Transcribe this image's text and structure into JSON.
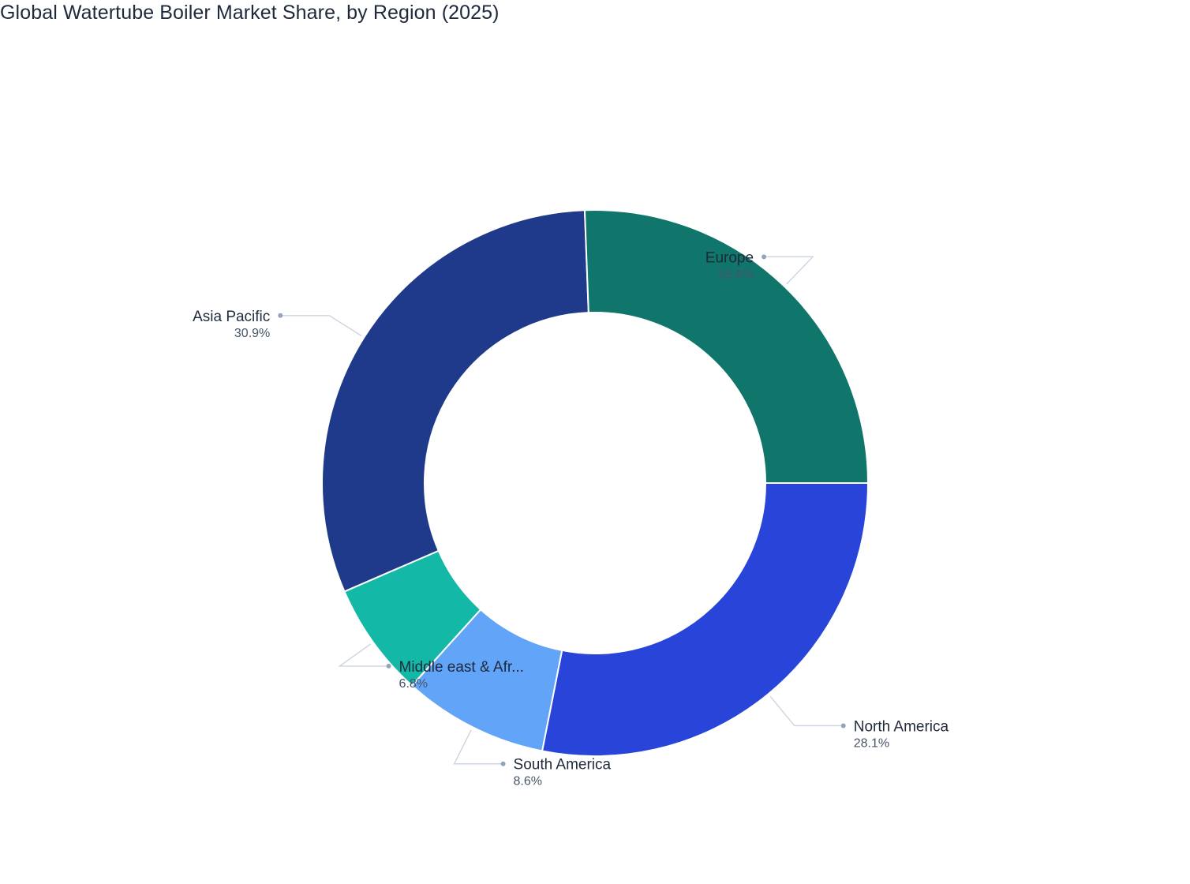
{
  "chart_data": {
    "type": "pie",
    "variant": "donut",
    "title": "Global Watertube Boiler Market Share, by Region (2025)",
    "unit": "%",
    "slices": [
      {
        "label": "North America",
        "display_label": "North America",
        "value": 28.1,
        "value_label": "28.1%",
        "color": "#2844d9",
        "label_side": "right"
      },
      {
        "label": "South America",
        "display_label": "South America",
        "value": 8.6,
        "value_label": "8.6%",
        "color": "#62a4f7",
        "label_side": "right"
      },
      {
        "label": "Middle east & Africa",
        "display_label": "Middle east & Afr...",
        "value": 6.8,
        "value_label": "6.8%",
        "color": "#14b8a6",
        "label_side": "right"
      },
      {
        "label": "Asia Pacific",
        "display_label": "Asia Pacific",
        "value": 30.9,
        "value_label": "30.9%",
        "color": "#1f3a8a",
        "label_side": "left"
      },
      {
        "label": "Europe",
        "display_label": "Europe",
        "value": 25.6,
        "value_label": "25.6%",
        "color": "#10766c",
        "label_side": "left"
      }
    ],
    "legend": "none",
    "start_position": "3 o'clock",
    "direction": "clockwise"
  },
  "colors": {
    "title": "#1e293b",
    "label": "#1e293b",
    "value_label": "#475569",
    "leader_line": "#cbd5e1",
    "leader_dot": "#94a3b8",
    "slice_border": "#ffffff"
  }
}
